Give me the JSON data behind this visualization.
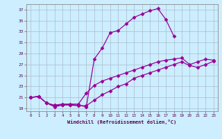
{
  "xlabel": "Windchill (Refroidissement éolien,°C)",
  "bg_color": "#cceeff",
  "grid_color": "#aabbcc",
  "line_color": "#990099",
  "xlim": [
    -0.5,
    23.5
  ],
  "ylim": [
    18.5,
    38.0
  ],
  "yticks": [
    19,
    21,
    23,
    25,
    27,
    29,
    31,
    33,
    35,
    37
  ],
  "xticks": [
    0,
    1,
    2,
    3,
    4,
    5,
    6,
    7,
    8,
    9,
    10,
    11,
    12,
    13,
    14,
    15,
    16,
    17,
    18,
    19,
    20,
    21,
    22,
    23
  ],
  "line1_x": [
    0,
    1,
    2,
    3,
    4,
    5,
    6,
    7,
    8,
    9,
    10,
    11,
    12,
    13,
    14,
    15,
    16,
    17,
    18
  ],
  "line1_y": [
    21.0,
    21.2,
    20.0,
    19.3,
    19.6,
    19.7,
    19.6,
    19.3,
    28.0,
    30.0,
    32.8,
    33.2,
    34.4,
    35.6,
    36.2,
    36.8,
    37.2,
    35.2,
    32.2
  ],
  "line2_x": [
    0,
    1,
    2,
    3,
    4,
    5,
    6,
    7,
    8,
    9,
    10,
    11,
    12,
    13,
    14,
    15,
    16,
    17,
    18,
    19,
    20,
    21,
    22,
    23
  ],
  "line2_y": [
    21.0,
    21.2,
    20.0,
    19.6,
    19.8,
    19.8,
    19.8,
    21.8,
    23.2,
    24.0,
    24.5,
    25.0,
    25.5,
    26.0,
    26.5,
    27.0,
    27.5,
    27.8,
    28.0,
    28.2,
    27.0,
    27.5,
    28.0,
    27.8
  ],
  "line3_x": [
    0,
    1,
    2,
    3,
    4,
    5,
    6,
    7,
    8,
    9,
    10,
    11,
    12,
    13,
    14,
    15,
    16,
    17,
    18,
    19,
    20,
    21,
    22,
    23
  ],
  "line3_y": [
    21.0,
    21.2,
    20.0,
    19.5,
    19.7,
    19.6,
    19.5,
    19.5,
    20.5,
    21.5,
    22.2,
    23.0,
    23.5,
    24.5,
    25.0,
    25.5,
    26.0,
    26.5,
    27.0,
    27.5,
    26.8,
    26.5,
    27.0,
    27.6
  ]
}
